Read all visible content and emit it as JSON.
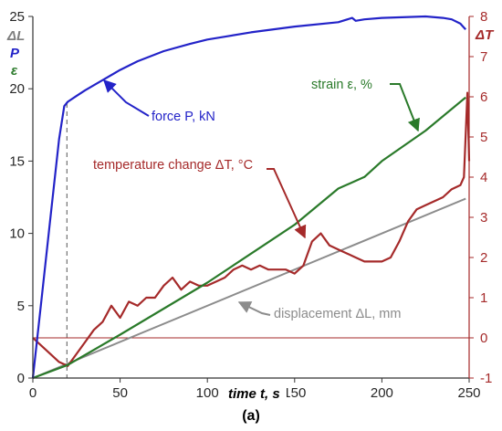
{
  "chart_data": {
    "type": "line",
    "caption": "(a)",
    "xlabel": "time t, s",
    "xlim": [
      0,
      250
    ],
    "xticks": [
      0,
      50,
      100,
      150,
      200,
      250
    ],
    "left_axis_labels": [
      "ΔL",
      "P",
      "ε"
    ],
    "ylim_left": [
      0,
      25
    ],
    "yticks_left": [
      0,
      5,
      10,
      15,
      20,
      25
    ],
    "right_axis_label": "ΔT",
    "ylim_right": [
      -1,
      8
    ],
    "yticks_right": [
      -1,
      0,
      1,
      2,
      3,
      4,
      5,
      6,
      7,
      8
    ],
    "vline_x": 19.5,
    "hline_right_y": 0,
    "series": [
      {
        "name": "force P, kN",
        "axis": "left",
        "color": "#2323c8",
        "x": [
          0,
          5,
          10,
          15,
          18,
          20,
          25,
          30,
          40,
          50,
          60,
          75,
          90,
          100,
          110,
          125,
          150,
          175,
          183,
          185,
          190,
          200,
          225,
          235,
          240,
          245,
          248
        ],
        "y": [
          0,
          5.5,
          11,
          16.5,
          18.8,
          19.1,
          19.5,
          19.9,
          20.6,
          21.3,
          21.9,
          22.6,
          23.1,
          23.4,
          23.6,
          23.9,
          24.3,
          24.6,
          24.9,
          24.7,
          24.8,
          24.9,
          25.0,
          24.9,
          24.8,
          24.5,
          24.1
        ]
      },
      {
        "name": "strain ε, %",
        "axis": "left",
        "color": "#2a7a2a",
        "x": [
          0,
          20,
          50,
          100,
          130,
          150,
          175,
          190,
          200,
          225,
          248
        ],
        "y": [
          0,
          0.9,
          3.0,
          6.6,
          9.0,
          10.6,
          13.1,
          13.9,
          15.0,
          17.1,
          19.4
        ]
      },
      {
        "name": "displacement ΔL, mm",
        "axis": "left",
        "color": "#8c8c8c",
        "x": [
          0,
          248
        ],
        "y": [
          0,
          12.4
        ]
      },
      {
        "name": "temperature change ΔT, °C",
        "axis": "right",
        "color": "#a52a2a",
        "x": [
          0,
          5,
          10,
          15,
          20,
          25,
          30,
          35,
          40,
          45,
          50,
          55,
          60,
          65,
          70,
          75,
          80,
          85,
          90,
          95,
          100,
          105,
          110,
          115,
          120,
          125,
          130,
          135,
          140,
          145,
          150,
          155,
          160,
          165,
          170,
          175,
          180,
          185,
          190,
          195,
          200,
          205,
          210,
          215,
          220,
          225,
          230,
          235,
          240,
          245,
          247,
          249,
          250
        ],
        "y": [
          0.0,
          -0.2,
          -0.4,
          -0.6,
          -0.7,
          -0.4,
          -0.1,
          0.2,
          0.4,
          0.8,
          0.5,
          0.9,
          0.8,
          1.0,
          1.0,
          1.3,
          1.5,
          1.2,
          1.4,
          1.3,
          1.3,
          1.4,
          1.5,
          1.7,
          1.8,
          1.7,
          1.8,
          1.7,
          1.7,
          1.7,
          1.6,
          1.8,
          2.4,
          2.6,
          2.3,
          2.2,
          2.1,
          2.0,
          1.9,
          1.9,
          1.9,
          2.0,
          2.4,
          2.9,
          3.2,
          3.3,
          3.4,
          3.5,
          3.7,
          3.8,
          4.0,
          6.1,
          4.4
        ]
      }
    ]
  },
  "annotations": {
    "force": "force P, kN",
    "strain": "strain ε, %",
    "temperature": "temperature change ΔT, °C",
    "displacement": "displacement ΔL, mm"
  },
  "colors": {
    "force": "#2323c8",
    "strain": "#2a7a2a",
    "displacement": "#8c8c8c",
    "temperature": "#a52a2a",
    "axis_left": "#262626",
    "axis_right": "#a52a2a"
  }
}
